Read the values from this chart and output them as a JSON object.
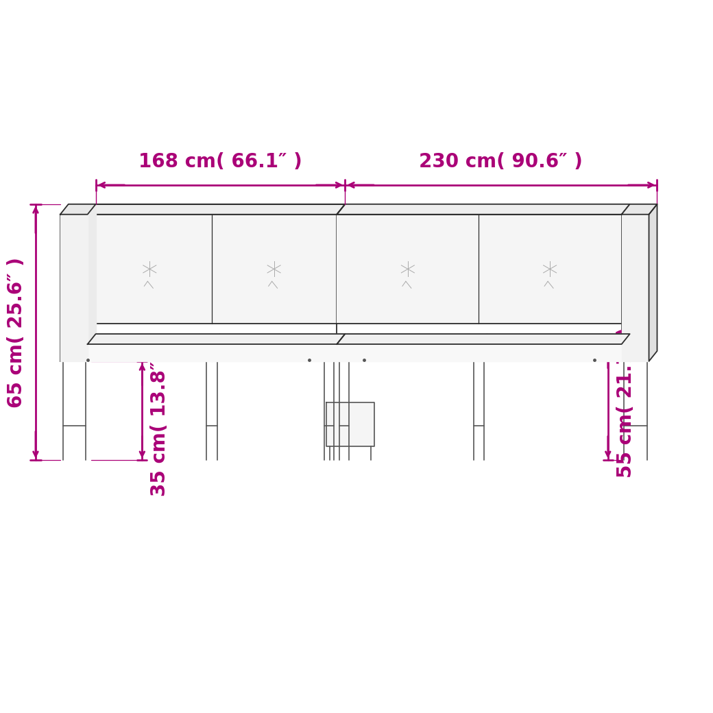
{
  "bg_color": "#ffffff",
  "line_color": "#2d2d2d",
  "dim_color": "#aa0077",
  "dim_168_label": "168 cm( 66.1″ )",
  "dim_230_label": "230 cm( 90.6″ )",
  "dim_65_label": "65 cm( 25.6″ )",
  "dim_35_label": "35 cm( 13.8″ )",
  "dim_55_label": "55 cm( 21.7″ )",
  "font_size_dim": 20,
  "font_size_dim_sm": 18
}
